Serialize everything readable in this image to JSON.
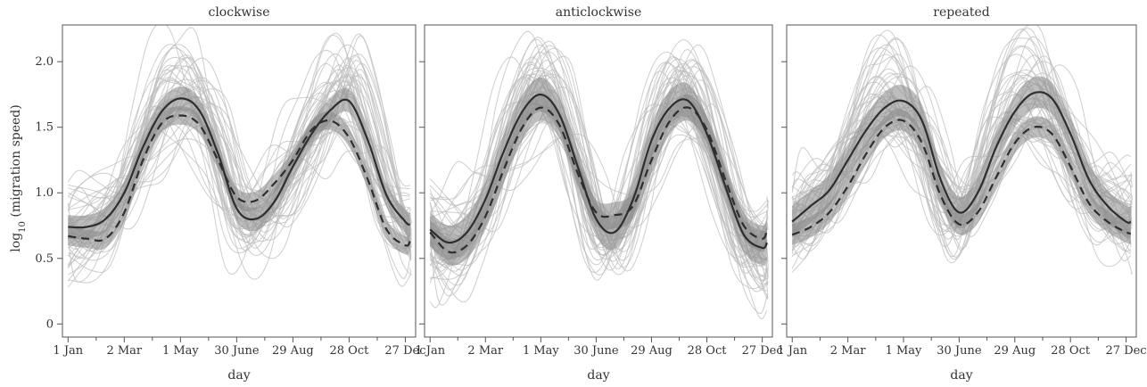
{
  "chart_data": {
    "type": "line",
    "ylabel_prefix": "log",
    "ylabel_sub": "10",
    "ylabel_suffix": " (migration speed)",
    "xlabel": "day",
    "x_ticks": [
      "1 Jan",
      "2 Mar",
      "1 May",
      "30 June",
      "29 Aug",
      "28 Oct",
      "27 Dec"
    ],
    "x_tick_days": [
      0,
      60,
      120,
      180,
      240,
      300,
      360
    ],
    "xlim": [
      -6,
      371
    ],
    "y_ticks": [
      0,
      0.5,
      1.0,
      1.5,
      2.0
    ],
    "y_tick_labels": [
      "0",
      "0.5",
      "1.0",
      "1.5",
      "2.0"
    ],
    "ylim": [
      -0.1,
      2.28
    ],
    "grid": false,
    "colors": {
      "mean": "#2e2e2e",
      "band": "#888888",
      "individual": "#bdbdbd"
    },
    "panels": [
      {
        "title": "clockwise",
        "x": [
          0,
          20,
          40,
          60,
          80,
          100,
          120,
          140,
          160,
          180,
          200,
          220,
          240,
          260,
          280,
          300,
          320,
          340,
          360,
          365
        ],
        "series": [
          {
            "style": "solid",
            "values": [
              0.74,
              0.74,
              0.8,
              1.0,
              1.35,
              1.62,
              1.72,
              1.63,
              1.3,
              0.88,
              0.8,
              0.93,
              1.2,
              1.45,
              1.63,
              1.7,
              1.4,
              0.98,
              0.78,
              0.76
            ],
            "band": 0.09
          },
          {
            "style": "dashed",
            "values": [
              0.67,
              0.65,
              0.65,
              0.85,
              1.25,
              1.53,
              1.59,
              1.52,
              1.25,
              0.97,
              0.94,
              1.07,
              1.25,
              1.48,
              1.55,
              1.42,
              1.1,
              0.72,
              0.6,
              0.63
            ],
            "band": 0.07
          }
        ]
      },
      {
        "title": "anticlockwise",
        "x": [
          0,
          20,
          40,
          60,
          80,
          100,
          120,
          140,
          160,
          180,
          200,
          220,
          240,
          260,
          280,
          300,
          320,
          340,
          360,
          365
        ],
        "series": [
          {
            "style": "solid",
            "values": [
              0.72,
              0.62,
              0.7,
              0.95,
              1.32,
              1.62,
              1.75,
              1.6,
              1.2,
              0.8,
              0.7,
              0.95,
              1.4,
              1.65,
              1.7,
              1.45,
              1.05,
              0.68,
              0.58,
              0.62
            ],
            "band": 0.13
          },
          {
            "style": "dashed",
            "values": [
              0.7,
              0.55,
              0.6,
              0.82,
              1.18,
              1.5,
              1.65,
              1.52,
              1.15,
              0.85,
              0.83,
              0.9,
              1.25,
              1.55,
              1.65,
              1.48,
              1.1,
              0.75,
              0.65,
              0.72
            ],
            "band": 0.1
          }
        ]
      },
      {
        "title": "repeated",
        "x": [
          0,
          20,
          40,
          60,
          80,
          100,
          120,
          140,
          160,
          180,
          200,
          220,
          240,
          260,
          280,
          300,
          320,
          340,
          360,
          365
        ],
        "series": [
          {
            "style": "solid",
            "values": [
              0.78,
              0.9,
              1.02,
              1.25,
              1.48,
              1.65,
              1.7,
              1.55,
              1.1,
              0.85,
              1.0,
              1.35,
              1.62,
              1.76,
              1.72,
              1.45,
              1.1,
              0.9,
              0.78,
              0.78
            ],
            "band": 0.12
          },
          {
            "style": "dashed",
            "values": [
              0.68,
              0.74,
              0.85,
              1.05,
              1.3,
              1.5,
              1.55,
              1.38,
              0.98,
              0.76,
              0.85,
              1.12,
              1.38,
              1.5,
              1.45,
              1.2,
              0.92,
              0.78,
              0.7,
              0.69
            ],
            "band": 0.08
          }
        ]
      }
    ]
  }
}
